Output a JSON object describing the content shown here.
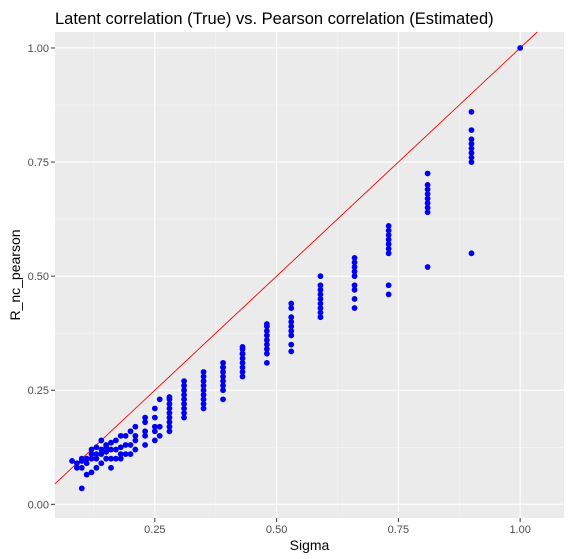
{
  "chart_data": {
    "type": "scatter",
    "title": "Latent correlation (True) vs. Pearson correlation (Estimated)",
    "xlabel": "Sigma",
    "ylabel": "R_nc_pearson",
    "xlim": [
      0.045,
      1.09
    ],
    "ylim": [
      -0.03,
      1.035
    ],
    "x_ticks": [
      0.25,
      0.5,
      0.75,
      1.0
    ],
    "x_tick_labels": [
      "0.25",
      "0.50",
      "0.75",
      "1.00"
    ],
    "y_ticks": [
      0.0,
      0.25,
      0.5,
      0.75,
      1.0
    ],
    "y_tick_labels": [
      "0.00",
      "0.25",
      "0.50",
      "0.75",
      "1.00"
    ],
    "grid": true,
    "panel_background": "#ebebeb",
    "point_color": "#0000ee",
    "reference_line": {
      "slope": 1,
      "intercept": 0,
      "color": "#ff0000"
    },
    "series": [
      {
        "x": [
          0.08,
          0.09,
          0.09,
          0.1,
          0.1,
          0.1,
          0.1,
          0.11,
          0.11,
          0.11,
          0.12,
          0.12,
          0.12,
          0.12,
          0.13,
          0.13,
          0.13,
          0.13,
          0.14,
          0.14,
          0.14,
          0.14,
          0.15,
          0.15,
          0.15,
          0.15,
          0.16,
          0.16,
          0.16,
          0.16,
          0.17,
          0.17,
          0.17,
          0.18,
          0.18,
          0.18,
          0.18,
          0.19,
          0.19,
          0.19,
          0.2,
          0.2,
          0.2,
          0.21,
          0.21,
          0.21,
          0.21,
          0.23,
          0.23,
          0.23,
          0.23,
          0.23,
          0.25,
          0.25,
          0.25,
          0.25,
          0.25,
          0.26,
          0.26,
          0.26,
          0.28,
          0.28,
          0.28,
          0.28,
          0.28,
          0.28,
          0.28,
          0.28,
          0.28,
          0.31,
          0.31,
          0.31,
          0.31,
          0.31,
          0.31,
          0.31,
          0.31,
          0.31,
          0.35,
          0.35,
          0.35,
          0.35,
          0.35,
          0.35,
          0.35,
          0.35,
          0.35,
          0.39,
          0.39,
          0.39,
          0.39,
          0.39,
          0.39,
          0.39,
          0.39,
          0.39,
          0.43,
          0.43,
          0.43,
          0.43,
          0.43,
          0.43,
          0.43,
          0.43,
          0.43,
          0.48,
          0.48,
          0.48,
          0.48,
          0.48,
          0.48,
          0.48,
          0.48,
          0.48,
          0.53,
          0.53,
          0.53,
          0.53,
          0.53,
          0.53,
          0.53,
          0.53,
          0.53,
          0.59,
          0.59,
          0.59,
          0.59,
          0.59,
          0.59,
          0.59,
          0.59,
          0.59,
          0.66,
          0.66,
          0.66,
          0.66,
          0.66,
          0.66,
          0.66,
          0.66,
          0.66,
          0.73,
          0.73,
          0.73,
          0.73,
          0.73,
          0.73,
          0.73,
          0.73,
          0.73,
          0.81,
          0.81,
          0.81,
          0.81,
          0.81,
          0.81,
          0.81,
          0.81,
          0.81,
          0.9,
          0.9,
          0.9,
          0.9,
          0.9,
          0.9,
          0.9,
          0.9,
          0.9,
          1.0
        ],
        "y": [
          0.095,
          0.08,
          0.09,
          0.035,
          0.08,
          0.095,
          0.1,
          0.065,
          0.09,
          0.1,
          0.07,
          0.1,
          0.11,
          0.12,
          0.08,
          0.1,
          0.11,
          0.125,
          0.09,
          0.11,
          0.12,
          0.14,
          0.1,
          0.115,
          0.125,
          0.13,
          0.08,
          0.1,
          0.12,
          0.135,
          0.1,
          0.12,
          0.14,
          0.1,
          0.11,
          0.125,
          0.15,
          0.11,
          0.13,
          0.15,
          0.11,
          0.13,
          0.16,
          0.12,
          0.14,
          0.15,
          0.17,
          0.13,
          0.15,
          0.16,
          0.18,
          0.19,
          0.14,
          0.16,
          0.17,
          0.19,
          0.21,
          0.15,
          0.17,
          0.23,
          0.16,
          0.17,
          0.18,
          0.19,
          0.2,
          0.21,
          0.22,
          0.23,
          0.235,
          0.19,
          0.2,
          0.21,
          0.22,
          0.23,
          0.24,
          0.25,
          0.26,
          0.27,
          0.21,
          0.22,
          0.23,
          0.24,
          0.25,
          0.26,
          0.27,
          0.28,
          0.29,
          0.23,
          0.25,
          0.26,
          0.27,
          0.28,
          0.29,
          0.3,
          0.3,
          0.31,
          0.28,
          0.29,
          0.3,
          0.31,
          0.32,
          0.33,
          0.33,
          0.34,
          0.345,
          0.31,
          0.33,
          0.34,
          0.35,
          0.36,
          0.37,
          0.38,
          0.39,
          0.395,
          0.335,
          0.35,
          0.37,
          0.38,
          0.39,
          0.4,
          0.41,
          0.43,
          0.44,
          0.41,
          0.42,
          0.43,
          0.44,
          0.45,
          0.46,
          0.47,
          0.48,
          0.5,
          0.43,
          0.45,
          0.47,
          0.48,
          0.5,
          0.51,
          0.52,
          0.53,
          0.54,
          0.46,
          0.48,
          0.55,
          0.56,
          0.57,
          0.58,
          0.59,
          0.6,
          0.61,
          0.52,
          0.64,
          0.65,
          0.66,
          0.67,
          0.68,
          0.69,
          0.7,
          0.725,
          0.55,
          0.75,
          0.76,
          0.77,
          0.78,
          0.79,
          0.8,
          0.82,
          0.86,
          1.0
        ]
      }
    ]
  }
}
